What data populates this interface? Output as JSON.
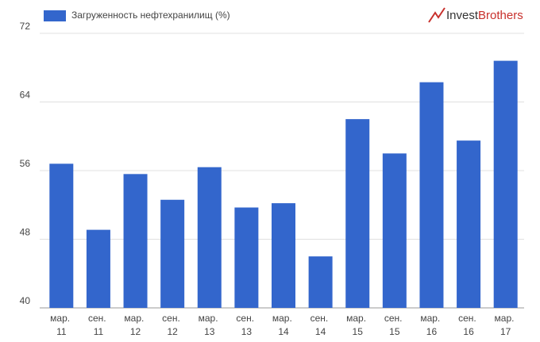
{
  "chart_data": {
    "type": "bar",
    "categories": [
      "мар. 11",
      "сен. 11",
      "мар. 12",
      "сен. 12",
      "мар. 13",
      "сен. 13",
      "мар. 14",
      "сен. 14",
      "мар. 15",
      "сен. 15",
      "мар. 16",
      "сен. 16",
      "мар. 17"
    ],
    "series": [
      {
        "name": "Загруженность нефтехранилищ (%)",
        "color": "#3366cc",
        "values": [
          56.8,
          49.1,
          55.6,
          52.6,
          56.4,
          51.7,
          52.2,
          46.0,
          62.0,
          58.0,
          66.3,
          59.5,
          68.8
        ]
      }
    ],
    "ylim": [
      40,
      72
    ],
    "yticks": [
      40,
      48,
      56,
      64,
      72
    ],
    "grid": true,
    "legend": "top-left"
  },
  "brand": {
    "part1": "Invest",
    "part2": "Brothers"
  }
}
